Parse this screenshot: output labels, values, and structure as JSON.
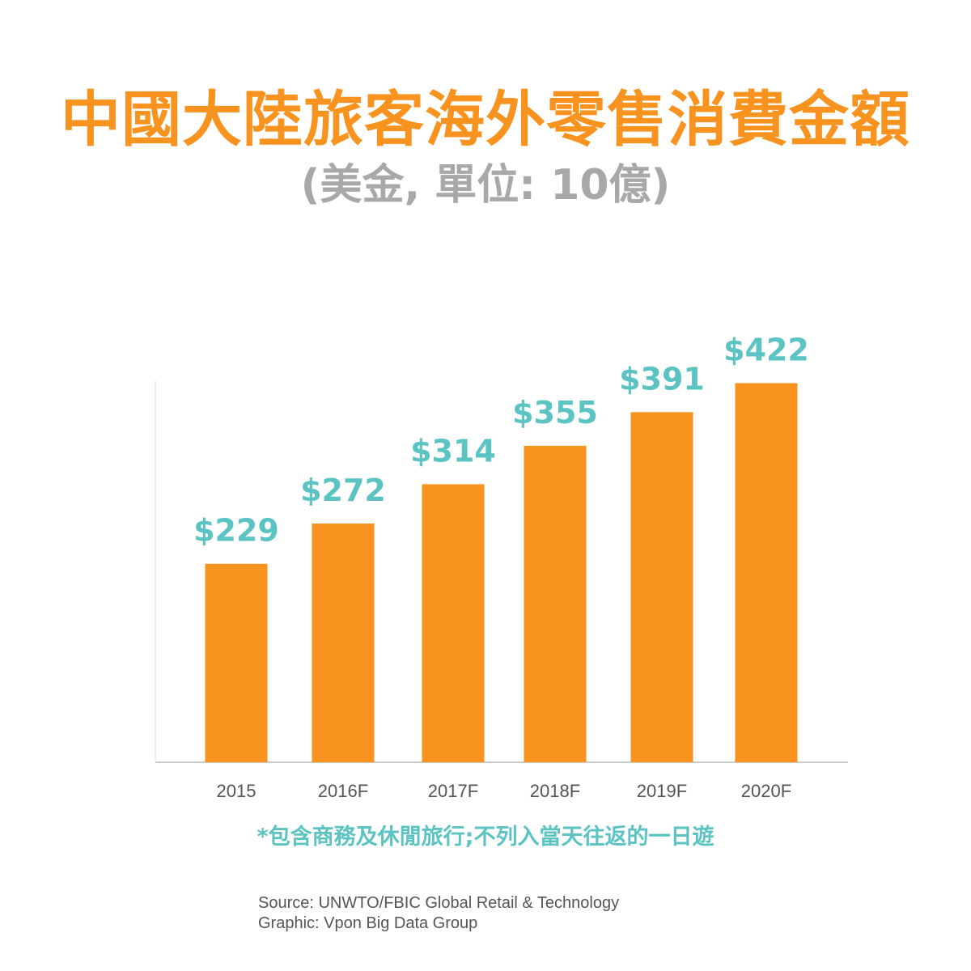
{
  "title": "中國大陸旅客海外零售消費金額",
  "subtitle": "(美金, 單位: 10億)",
  "chart_data": {
    "type": "bar",
    "title": "中國大陸旅客海外零售消費金額",
    "subtitle": "(美金, 單位: 10億)",
    "categories": [
      "2015",
      "2016F",
      "2017F",
      "2018F",
      "2019F",
      "2020F"
    ],
    "values": [
      229,
      272,
      314,
      355,
      391,
      422
    ],
    "data_labels": [
      "$229",
      "$272",
      "$314",
      "$355",
      "$391",
      "$422"
    ],
    "xlabel": "",
    "ylabel": "",
    "ylim": [
      17,
      425
    ],
    "grid": false,
    "bar_color": "#f7931e",
    "label_color": "#5bc4c2"
  },
  "footnote": "*包含商務及休閒旅行;不列入當天往返的一日遊",
  "source": "Source: UNWTO/FBIC Global Retail & Technology",
  "graphic": "Graphic: Vpon Big Data Group"
}
